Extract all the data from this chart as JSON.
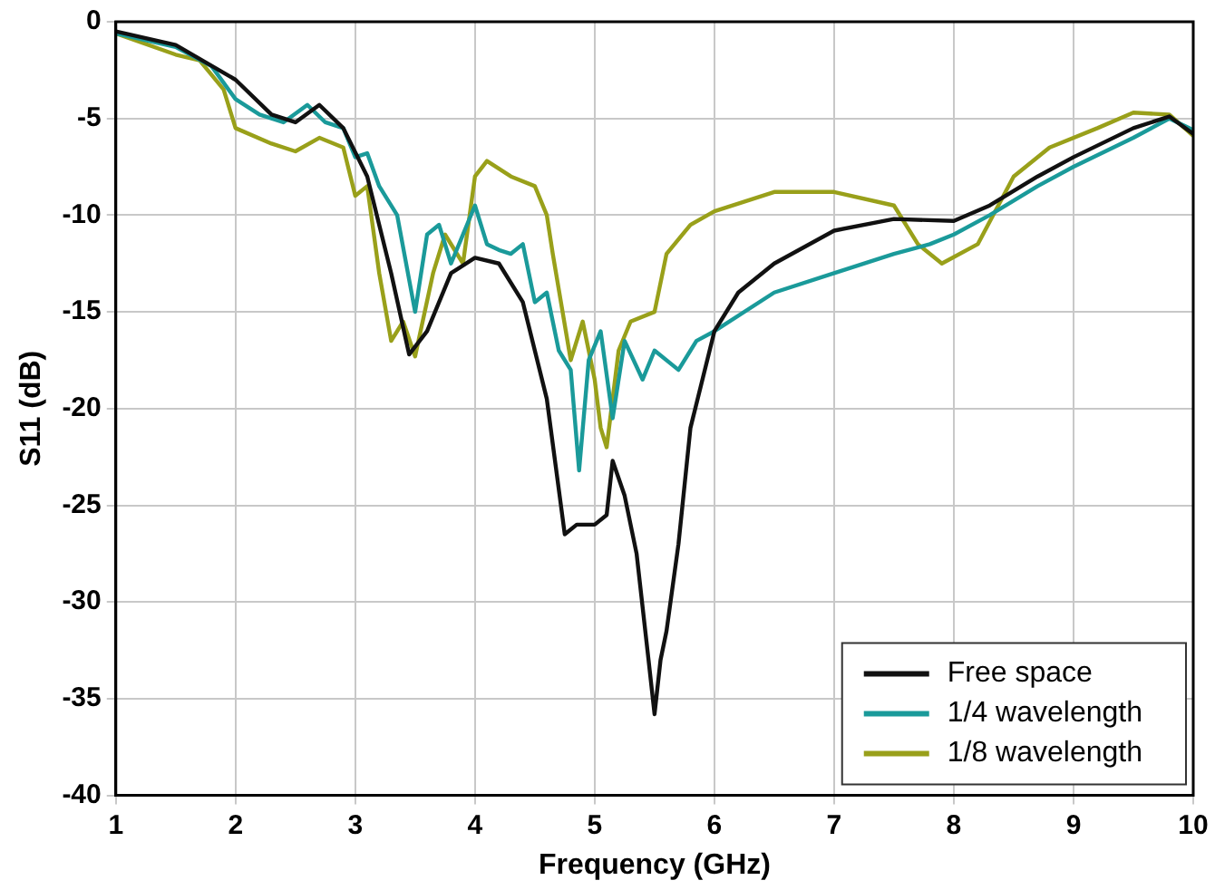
{
  "chart_data": {
    "type": "line",
    "xlabel": "Frequency (GHz)",
    "ylabel": "S11 (dB)",
    "xlim": [
      1,
      10
    ],
    "ylim": [
      -40,
      0
    ],
    "xticks": [
      1,
      2,
      3,
      4,
      5,
      6,
      7,
      8,
      9,
      10
    ],
    "yticks": [
      -40,
      -35,
      -30,
      -25,
      -20,
      -15,
      -10,
      -5,
      0
    ],
    "grid": true,
    "legend": "bottom right",
    "marker": "none",
    "line_style": "solid",
    "series": [
      {
        "name": "Free space",
        "color": "#111111",
        "x": [
          1,
          1.5,
          2,
          2.3,
          2.5,
          2.7,
          2.9,
          3.1,
          3.3,
          3.45,
          3.6,
          3.8,
          4.0,
          4.2,
          4.4,
          4.6,
          4.75,
          4.85,
          5.0,
          5.1,
          5.15,
          5.25,
          5.35,
          5.45,
          5.5,
          5.55,
          5.6,
          5.7,
          5.8,
          6.0,
          6.2,
          6.5,
          7,
          7.5,
          8,
          8.3,
          8.7,
          9,
          9.5,
          9.8,
          10
        ],
        "values": [
          -0.5,
          -1.2,
          -3,
          -4.8,
          -5.2,
          -4.3,
          -5.5,
          -8,
          -13,
          -17.2,
          -16,
          -13,
          -12.2,
          -12.5,
          -14.5,
          -19.5,
          -26.5,
          -26,
          -26,
          -25.5,
          -22.7,
          -24.5,
          -27.5,
          -33,
          -35.8,
          -33,
          -31.5,
          -27,
          -21,
          -16,
          -14,
          -12.5,
          -10.8,
          -10.2,
          -10.3,
          -9.5,
          -8,
          -7,
          -5.5,
          -4.9,
          -5.8
        ]
      },
      {
        "name": "1/4 wavelength",
        "color": "#1a9a9a",
        "x": [
          1,
          1.5,
          1.8,
          2.0,
          2.2,
          2.4,
          2.6,
          2.75,
          2.9,
          3.0,
          3.1,
          3.2,
          3.35,
          3.5,
          3.6,
          3.7,
          3.8,
          4.0,
          4.1,
          4.2,
          4.3,
          4.4,
          4.5,
          4.6,
          4.7,
          4.8,
          4.87,
          4.95,
          5.05,
          5.15,
          5.25,
          5.4,
          5.5,
          5.7,
          5.85,
          6.0,
          6.5,
          7,
          7.5,
          7.8,
          8.0,
          8.3,
          8.7,
          9,
          9.5,
          9.8,
          10
        ],
        "values": [
          -0.6,
          -1.3,
          -2.3,
          -4,
          -4.8,
          -5.2,
          -4.3,
          -5.2,
          -5.5,
          -7,
          -6.8,
          -8.5,
          -10,
          -15,
          -11,
          -10.5,
          -12.5,
          -9.5,
          -11.5,
          -11.8,
          -12,
          -11.5,
          -14.5,
          -14,
          -17,
          -18,
          -23.2,
          -17.5,
          -16,
          -20.5,
          -16.5,
          -18.5,
          -17,
          -18,
          -16.5,
          -16,
          -14,
          -13,
          -12,
          -11.5,
          -11,
          -10,
          -8.5,
          -7.5,
          -6,
          -5,
          -5.6
        ]
      },
      {
        "name": "1/8 wavelength",
        "color": "#99a01a",
        "x": [
          1,
          1.5,
          1.7,
          1.9,
          2.0,
          2.3,
          2.5,
          2.7,
          2.9,
          3.0,
          3.1,
          3.2,
          3.3,
          3.4,
          3.5,
          3.65,
          3.75,
          3.9,
          4.0,
          4.1,
          4.3,
          4.5,
          4.6,
          4.65,
          4.8,
          4.9,
          5.0,
          5.05,
          5.1,
          5.2,
          5.3,
          5.5,
          5.6,
          5.8,
          6.0,
          6.5,
          7,
          7.5,
          7.7,
          7.9,
          8.2,
          8.5,
          8.8,
          9.2,
          9.5,
          9.8,
          10
        ],
        "values": [
          -0.6,
          -1.7,
          -2,
          -3.5,
          -5.5,
          -6.3,
          -6.7,
          -6,
          -6.5,
          -9,
          -8.5,
          -13,
          -16.5,
          -15.5,
          -17.3,
          -13,
          -11,
          -12.5,
          -8,
          -7.2,
          -8,
          -8.5,
          -10,
          -12,
          -17.5,
          -15.5,
          -18.5,
          -21,
          -22,
          -17,
          -15.5,
          -15,
          -12,
          -10.5,
          -9.8,
          -8.8,
          -8.8,
          -9.5,
          -11.5,
          -12.5,
          -11.5,
          -8,
          -6.5,
          -5.5,
          -4.7,
          -4.8,
          -5.9
        ]
      }
    ]
  }
}
